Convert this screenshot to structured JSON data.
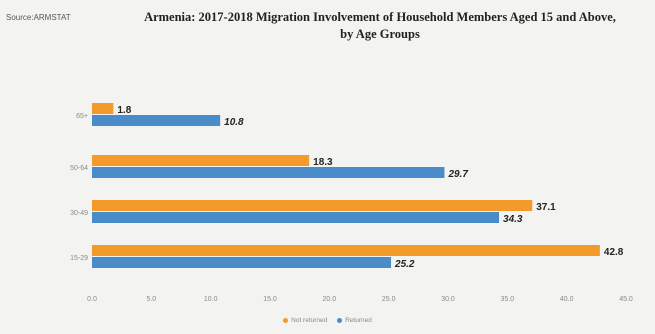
{
  "source": "Source:ARMSTAT",
  "chart_data": {
    "type": "bar",
    "orientation": "horizontal",
    "title_line1": "Armenia: 2017-2018 Migration Involvement of Household Members Aged 15 and Above,",
    "title_line2": "by Age Groups",
    "categories": [
      "65+",
      "50-64",
      "30-49",
      "15-29"
    ],
    "series": [
      {
        "name": "Not returned",
        "color": "#f39a2a",
        "values": [
          1.8,
          18.3,
          37.1,
          42.8
        ]
      },
      {
        "name": "Returned",
        "color": "#4a8bc9",
        "values": [
          10.8,
          29.7,
          34.3,
          25.2
        ]
      }
    ],
    "xlim": [
      0,
      45
    ],
    "xticks": [
      "0.0",
      "5.0",
      "10.0",
      "15.0",
      "20.0",
      "25.0",
      "30.0",
      "35.0",
      "40.0",
      "45.0"
    ],
    "grid": false,
    "legend_position": "bottom"
  }
}
